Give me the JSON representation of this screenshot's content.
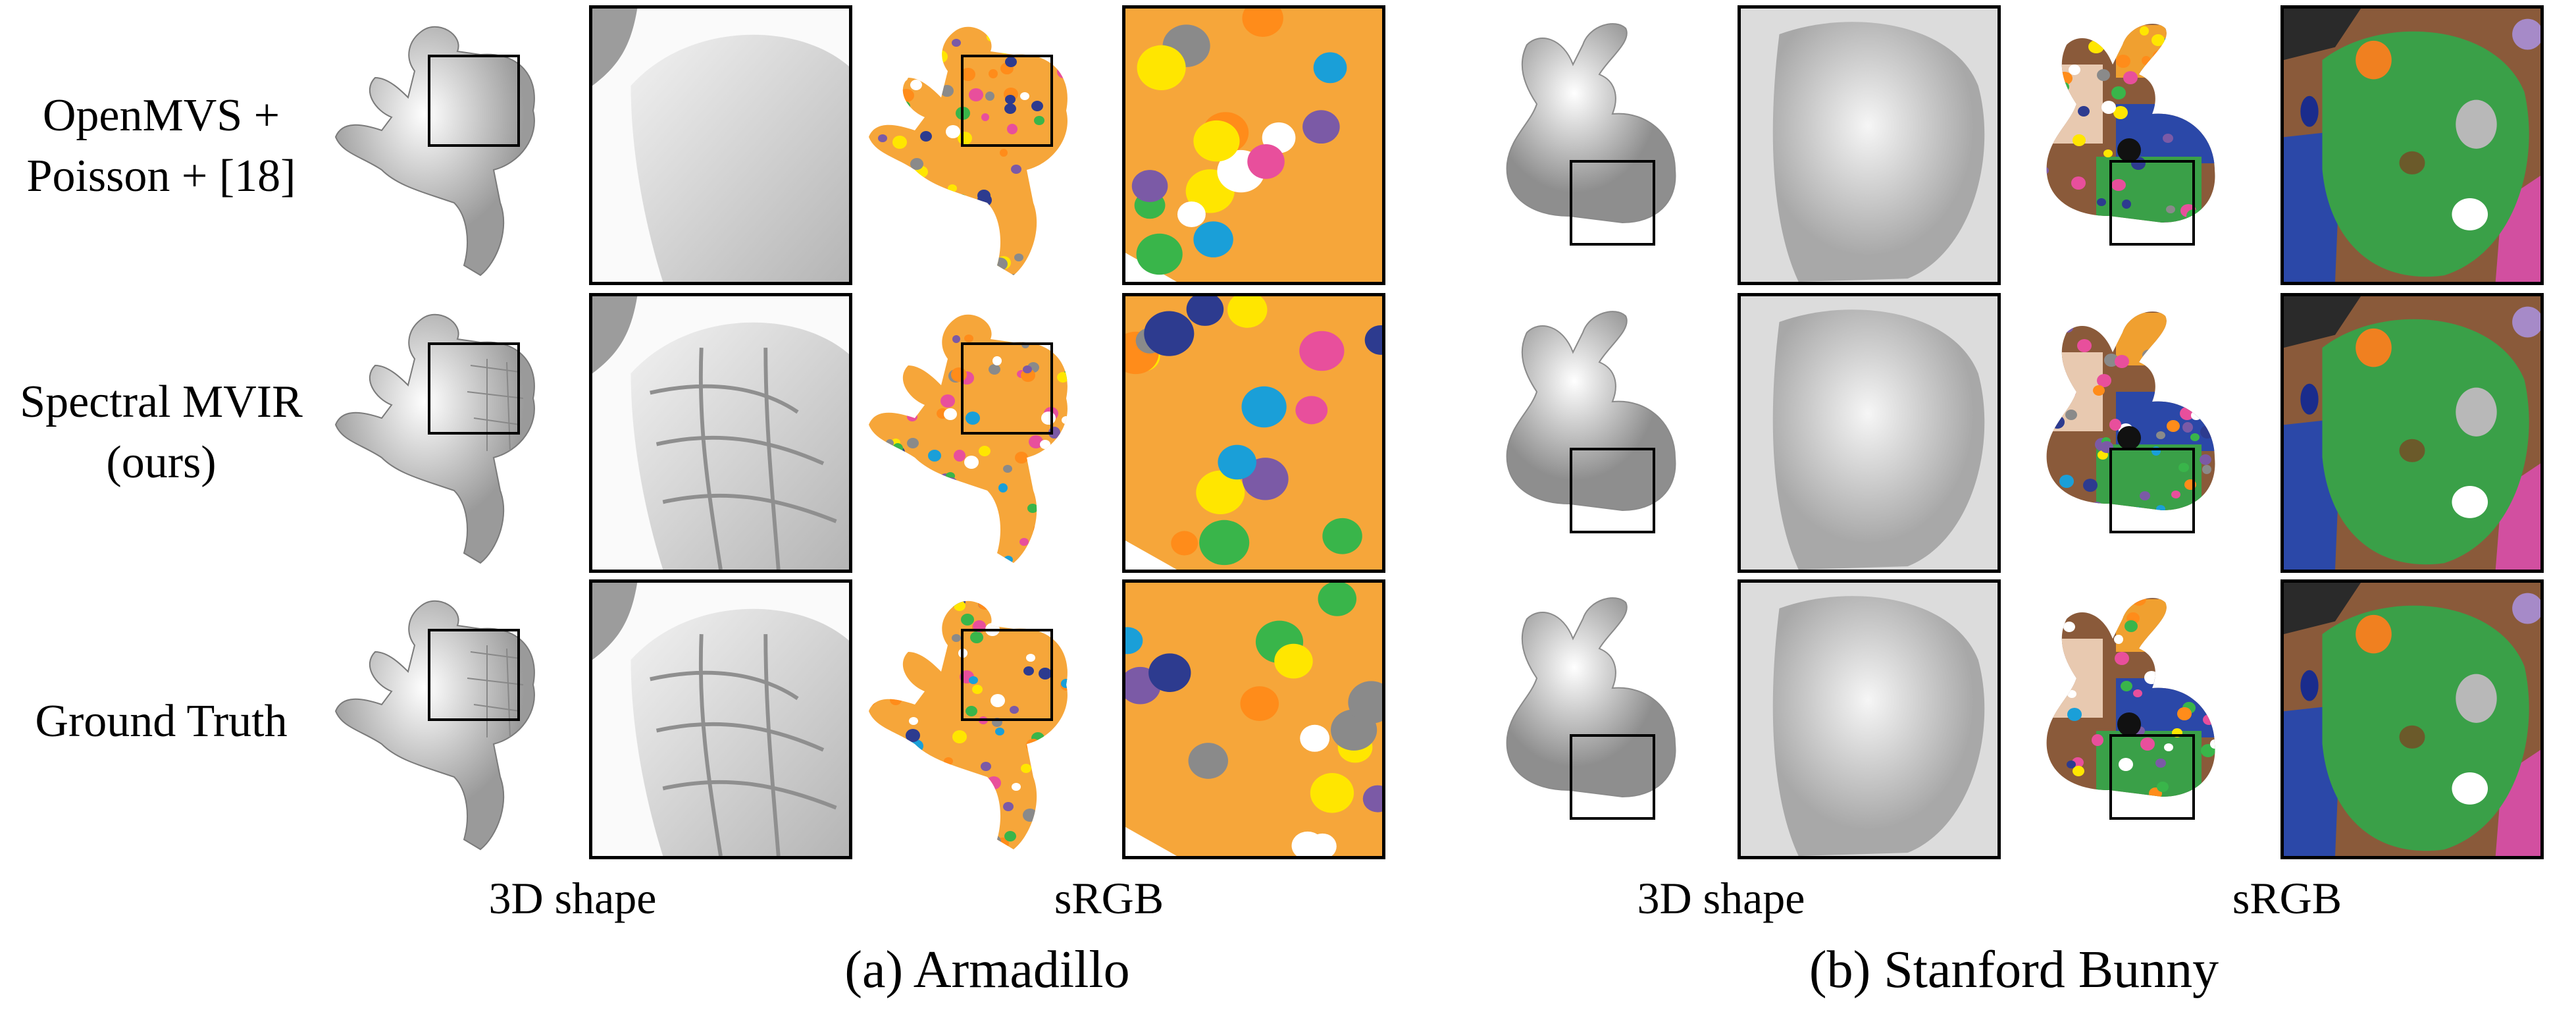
{
  "rows": [
    {
      "label_lines": [
        "OpenMVS +",
        "Poisson + [18]"
      ]
    },
    {
      "label_lines": [
        "Spectral MVIR",
        "(ours)"
      ]
    },
    {
      "label_lines": [
        "Ground Truth"
      ]
    }
  ],
  "column_labels": {
    "a_shape": "3D shape",
    "a_srgb": "sRGB",
    "b_shape": "3D shape",
    "b_srgb": "sRGB"
  },
  "sub_captions": {
    "a": "(a) Armadillo",
    "b": "(b) Stanford Bunny"
  },
  "colors": {
    "armadillo_base": "#f6a63a",
    "bunny_green": "#3aa048",
    "bunny_blue": "#2b48a8",
    "bunny_brown": "#8a5a3a"
  }
}
